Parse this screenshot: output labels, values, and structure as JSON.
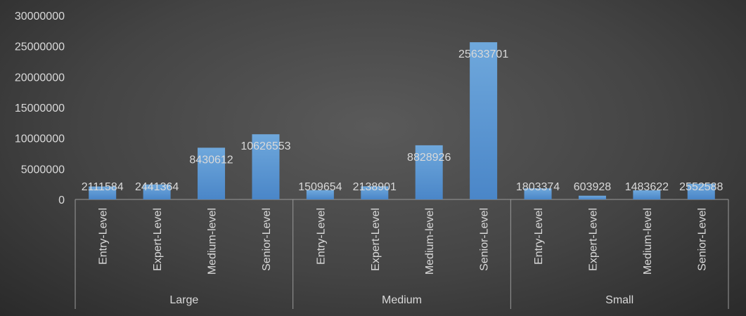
{
  "chart_data": {
    "type": "bar",
    "groups": [
      {
        "name": "Large",
        "categories": [
          "Entry-Level",
          "Expert-Level",
          "Medium-level",
          "Senior-Level"
        ],
        "values": [
          2111584,
          2441364,
          8430612,
          10626553
        ]
      },
      {
        "name": "Medium",
        "categories": [
          "Entry-Level",
          "Expert-Level",
          "Medium-level",
          "Senior-Level"
        ],
        "values": [
          1509654,
          2138901,
          8828926,
          25633701
        ]
      },
      {
        "name": "Small",
        "categories": [
          "Entry-Level",
          "Expert-Level",
          "Medium-level",
          "Senior-Level"
        ],
        "values": [
          1803374,
          603928,
          1483622,
          2552588
        ]
      }
    ],
    "data_labels": [
      [
        "2111584",
        "2441364",
        "8430612",
        "10626553"
      ],
      [
        "1509654",
        "2138901",
        "8828926",
        "25633701"
      ],
      [
        "1803374",
        "603928",
        "1483622",
        "2552588"
      ]
    ],
    "yticks": [
      0,
      5000000,
      10000000,
      15000000,
      20000000,
      25000000,
      30000000
    ],
    "ytick_labels": [
      "0",
      "5000000",
      "10000000",
      "15000000",
      "20000000",
      "25000000",
      "30000000"
    ],
    "ylim": [
      0,
      30000000
    ],
    "grid": false,
    "legend": "none",
    "colors": {
      "bar_top": "#6fa8dc",
      "bar_bottom": "#4a86c8",
      "axis": "#9a9a9a",
      "text": "#d9d9d9"
    }
  }
}
